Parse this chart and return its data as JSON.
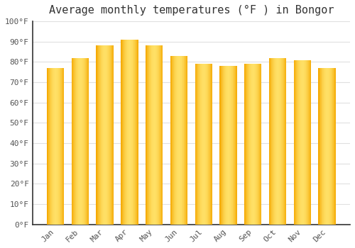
{
  "title": "Average monthly temperatures (°F ) in Bongor",
  "months": [
    "Jan",
    "Feb",
    "Mar",
    "Apr",
    "May",
    "Jun",
    "Jul",
    "Aug",
    "Sep",
    "Oct",
    "Nov",
    "Dec"
  ],
  "values": [
    77,
    82,
    88,
    91,
    88,
    83,
    79,
    78,
    79,
    82,
    81,
    77
  ],
  "ylim": [
    0,
    100
  ],
  "yticks": [
    0,
    10,
    20,
    30,
    40,
    50,
    60,
    70,
    80,
    90,
    100
  ],
  "ytick_labels": [
    "0°F",
    "10°F",
    "20°F",
    "30°F",
    "40°F",
    "50°F",
    "60°F",
    "70°F",
    "80°F",
    "90°F",
    "100°F"
  ],
  "background_color": "#FFFFFF",
  "grid_color": "#E0E0E0",
  "bar_edge_color": "#F5A800",
  "bar_center_color": "#FFE066",
  "title_fontsize": 11,
  "tick_fontsize": 8,
  "font_family": "monospace",
  "axis_color": "#333333",
  "tick_color": "#555555"
}
